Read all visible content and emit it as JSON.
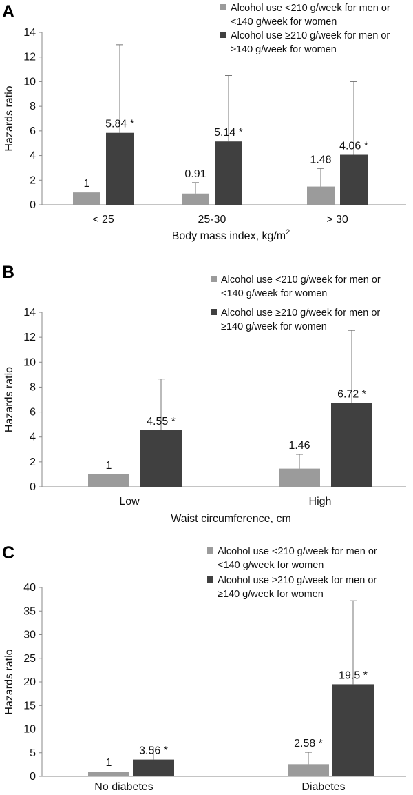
{
  "colors": {
    "series1": "#9b9b9b",
    "series2": "#404040"
  },
  "chart_data": [
    {
      "panel": "A",
      "type": "bar",
      "ylabel": "Hazards ratio",
      "xlabel": "Body mass index, kg/m",
      "xlabel_sup": "2",
      "ylim": [
        0,
        14
      ],
      "yticks": [
        0,
        2,
        4,
        6,
        8,
        10,
        12,
        14
      ],
      "categories": [
        "< 25",
        "25-30",
        "> 30"
      ],
      "legend_position": "top-right",
      "series": [
        {
          "name": [
            "Alcohol use <210 g/week for men or",
            "<140 g/week for women"
          ],
          "values": [
            1,
            0.91,
            1.48
          ],
          "upper": [
            null,
            1.8,
            2.95
          ],
          "labels": [
            "1",
            "0.91",
            "1.48"
          ]
        },
        {
          "name": [
            "Alcohol use  ≥210 g/week for men or",
            "≥140 g/week for women"
          ],
          "values": [
            5.84,
            5.14,
            4.06
          ],
          "upper": [
            13.0,
            10.5,
            10.0
          ],
          "labels": [
            "5.84 *",
            "5.14 *",
            "4.06 *"
          ]
        }
      ]
    },
    {
      "panel": "B",
      "type": "bar",
      "ylabel": "Hazards ratio",
      "xlabel": "Waist circumference, cm",
      "ylim": [
        0,
        14
      ],
      "yticks": [
        0,
        2,
        4,
        6,
        8,
        10,
        12,
        14
      ],
      "categories": [
        "Low",
        "High"
      ],
      "legend_position": "top-right",
      "series": [
        {
          "name": [
            "Alcohol use <210 g/week for men or",
            "<140 g/week for women"
          ],
          "values": [
            1,
            1.46
          ],
          "upper": [
            null,
            2.6
          ],
          "labels": [
            "1",
            "1.46"
          ]
        },
        {
          "name": [
            "Alcohol use  ≥210 g/week for men or",
            "≥140 g/week for women"
          ],
          "values": [
            4.55,
            6.72
          ],
          "upper": [
            8.65,
            12.55
          ],
          "labels": [
            "4.55 *",
            "6.72 *"
          ]
        }
      ]
    },
    {
      "panel": "C",
      "type": "bar",
      "ylabel": "Hazards ratio",
      "xlabel": "",
      "ylim": [
        0,
        40
      ],
      "yticks": [
        0,
        5,
        10,
        15,
        20,
        25,
        30,
        35,
        40
      ],
      "categories": [
        "No diabetes",
        "Diabetes"
      ],
      "legend_position": "top-right",
      "series": [
        {
          "name": [
            "Alcohol use <210 g/week for men or",
            "<140 g/week for women"
          ],
          "values": [
            1,
            2.58
          ],
          "upper": [
            null,
            5.1
          ],
          "labels": [
            "1",
            "2.58 *"
          ]
        },
        {
          "name": [
            "Alcohol use  ≥210 g/week for men or",
            "≥140 g/week for women"
          ],
          "values": [
            3.56,
            19.5
          ],
          "upper": [
            6.2,
            37.2
          ],
          "labels": [
            "3.56 *",
            "19.5 *"
          ]
        }
      ]
    }
  ]
}
